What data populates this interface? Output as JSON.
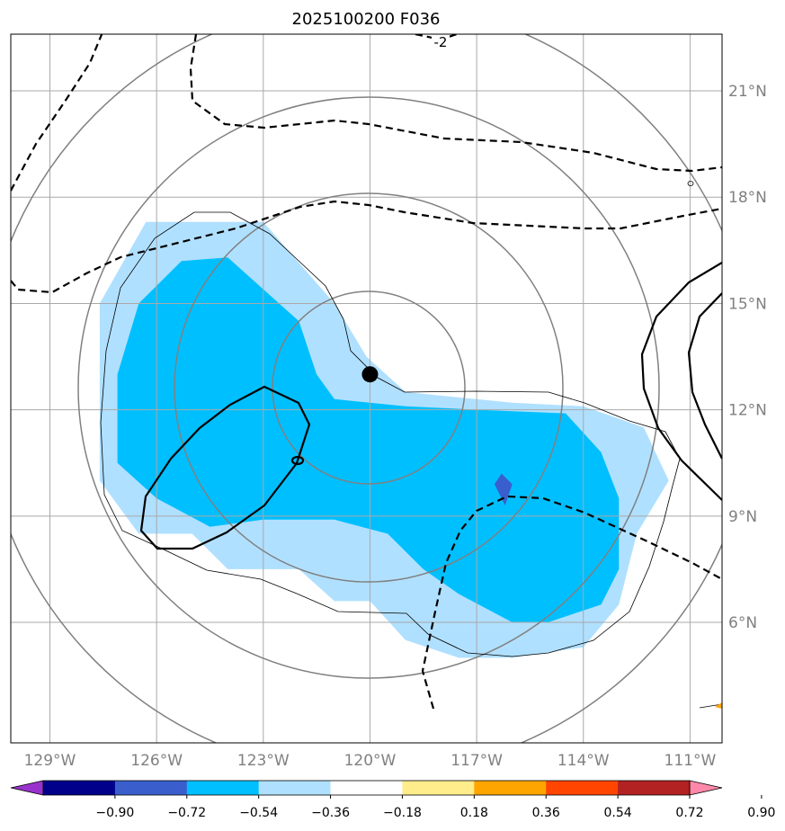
{
  "chart_data": {
    "type": "heatmap",
    "title": "2025100200 F036",
    "projection": "map",
    "lon_range": [
      -130.1,
      -110.1
    ],
    "lat_range": [
      2.6,
      22.6
    ],
    "xticks": [
      {
        "value": -129,
        "label": "129°W"
      },
      {
        "value": -126,
        "label": "126°W"
      },
      {
        "value": -123,
        "label": "123°W"
      },
      {
        "value": -120,
        "label": "120°W"
      },
      {
        "value": -117,
        "label": "117°W"
      },
      {
        "value": -114,
        "label": "114°W"
      },
      {
        "value": -111,
        "label": "111°W"
      }
    ],
    "yticks": [
      {
        "value": 6,
        "label": "6°N"
      },
      {
        "value": 9,
        "label": "9°N"
      },
      {
        "value": 12,
        "label": "12°N"
      },
      {
        "value": 15,
        "label": "15°N"
      },
      {
        "value": 18,
        "label": "18°N"
      },
      {
        "value": 21,
        "label": "21°N"
      }
    ],
    "grid": true,
    "center_marker": {
      "lon": -120.0,
      "lat": 13.0,
      "label": ""
    },
    "range_rings_center": {
      "lon": -120.0,
      "lat": 13.0
    },
    "contour_label": "-2",
    "colorbar": {
      "levels": [
        -0.9,
        -0.72,
        -0.54,
        -0.36,
        -0.18,
        0.18,
        0.36,
        0.54,
        0.72,
        0.9
      ],
      "tick_labels": [
        "−0.90",
        "−0.72",
        "−0.54",
        "−0.36",
        "−0.18",
        "0.18",
        "0.36",
        "0.54",
        "0.72",
        "0.90"
      ],
      "colors": [
        "#9932cc",
        "#00008b",
        "#3a5fcd",
        "#00bfff",
        "#b0e0ff",
        "#ffffff",
        "#ffec8b",
        "#ffa500",
        "#ff4500",
        "#b22222",
        "#ff88aa"
      ],
      "extend": "both"
    },
    "filled_regions": [
      {
        "level": "-0.36 to -0.18",
        "color": "#b0e0ff",
        "polygon": [
          [
            -127.6,
            15.0
          ],
          [
            -126.3,
            17.3
          ],
          [
            -123.0,
            17.3
          ],
          [
            -121.0,
            15.0
          ],
          [
            -120.1,
            13.5
          ],
          [
            -119.0,
            12.5
          ],
          [
            -116.0,
            12.2
          ],
          [
            -114.0,
            12.1
          ],
          [
            -112.3,
            11.5
          ],
          [
            -111.6,
            10.0
          ],
          [
            -112.5,
            8.5
          ],
          [
            -113.0,
            6.5
          ],
          [
            -114.0,
            5.3
          ],
          [
            -116.0,
            5.0
          ],
          [
            -117.5,
            5.0
          ],
          [
            -119.0,
            5.5
          ],
          [
            -120.0,
            6.6
          ],
          [
            -121.0,
            6.6
          ],
          [
            -122.0,
            7.5
          ],
          [
            -124.0,
            7.5
          ],
          [
            -125.0,
            8.5
          ],
          [
            -126.5,
            8.5
          ],
          [
            -127.6,
            10.0
          ],
          [
            -127.6,
            12.5
          ]
        ]
      },
      {
        "level": "-0.54 to -0.36",
        "color": "#00bfff",
        "polygon": [
          [
            -127.1,
            13.0
          ],
          [
            -126.5,
            15.0
          ],
          [
            -125.3,
            16.2
          ],
          [
            -124.0,
            16.3
          ],
          [
            -122.0,
            14.5
          ],
          [
            -121.5,
            13.0
          ],
          [
            -121.0,
            12.3
          ],
          [
            -119.0,
            12.1
          ],
          [
            -117.0,
            12.0
          ],
          [
            -114.5,
            11.9
          ],
          [
            -113.5,
            10.8
          ],
          [
            -113.0,
            9.5
          ],
          [
            -113.0,
            7.5
          ],
          [
            -113.5,
            6.5
          ],
          [
            -115.0,
            6.0
          ],
          [
            -116.0,
            6.0
          ],
          [
            -117.5,
            6.8
          ],
          [
            -118.5,
            7.5
          ],
          [
            -119.5,
            8.5
          ],
          [
            -121.0,
            8.9
          ],
          [
            -123.0,
            8.9
          ],
          [
            -124.5,
            8.7
          ],
          [
            -126.0,
            9.5
          ],
          [
            -127.1,
            10.5
          ]
        ]
      },
      {
        "level": "-0.72 to -0.54",
        "color": "#3a5fcd",
        "polygon": [
          [
            -116.3,
            10.2
          ],
          [
            -116.0,
            9.9
          ],
          [
            -116.2,
            9.3
          ],
          [
            -116.5,
            9.9
          ]
        ]
      }
    ],
    "annotations": [
      "-2"
    ]
  }
}
